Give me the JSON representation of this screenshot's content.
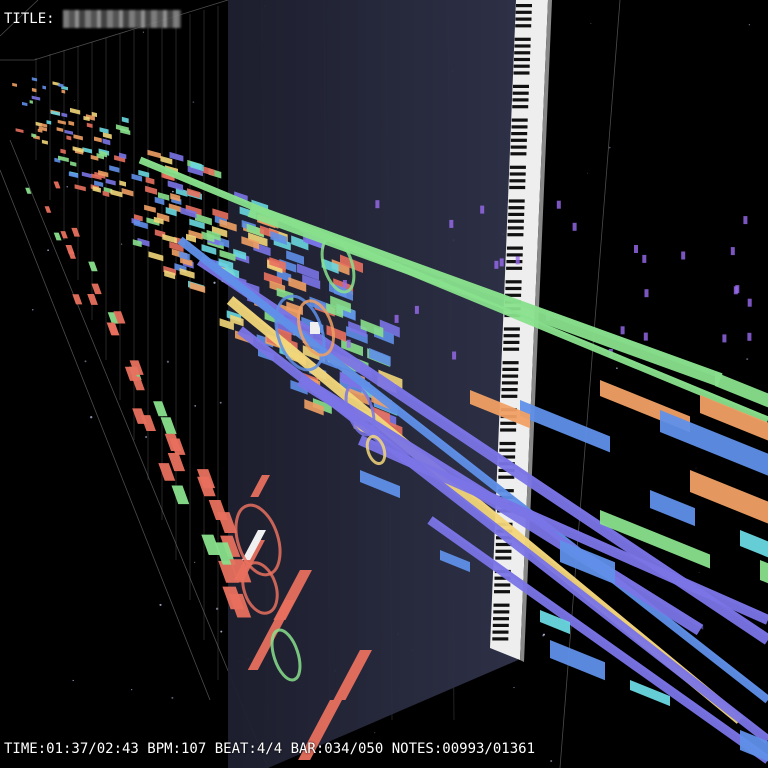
{
  "hud": {
    "title_label": "TITLE:",
    "status_line": "TIME:01:37/02:43 BPM:107 BEAT:4/4 BAR:034/050 NOTES:00993/01361"
  },
  "status": {
    "time_elapsed": "01:37",
    "time_total": "02:43",
    "bpm": 107,
    "beat": "4/4",
    "bar_current": 34,
    "bar_total": 50,
    "notes_played": 993,
    "notes_total": 1361
  },
  "colors": {
    "background": "#000000",
    "keyboard_plane": "#2a2c3a",
    "grid_line": "#8a8a8a",
    "track_blue": "#5f8fe8",
    "track_purple": "#7a74e6",
    "track_orange": "#f0a064",
    "track_green": "#88e08c",
    "track_red": "#e8705e",
    "track_yellow": "#f2d67a",
    "track_cyan": "#6ad8e0",
    "track_violet": "#9a6cf0"
  },
  "icons": {
    "keyboard": "piano-keyboard-icon",
    "note_ring": "ring-icon"
  }
}
